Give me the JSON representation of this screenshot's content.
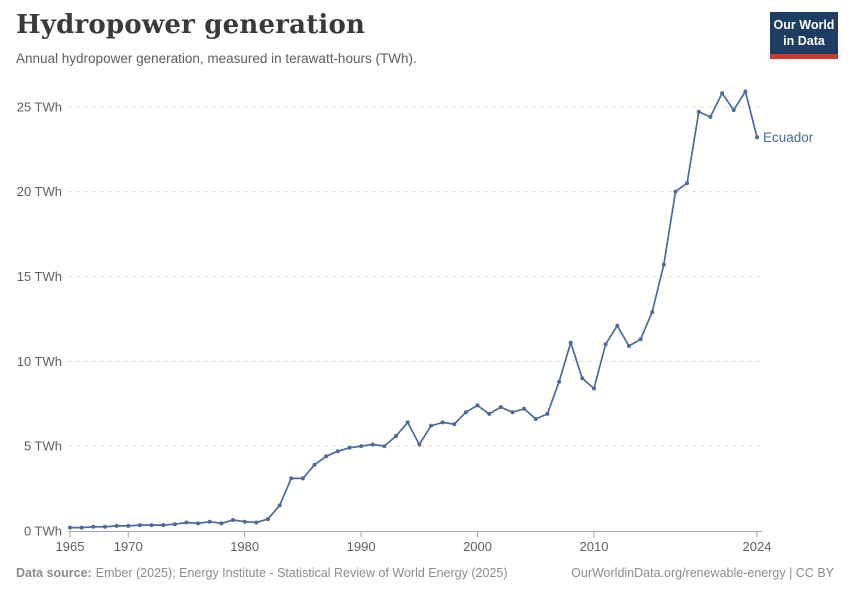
{
  "header": {
    "title": "Hydropower generation",
    "subtitle": "Annual hydropower generation, measured in terawatt-hours (TWh).",
    "logo": {
      "line1": "Our World",
      "line2": "in Data"
    }
  },
  "footer": {
    "source_label": "Data source:",
    "source_text": "Ember (2025); Energy Institute - Statistical Review of World Energy (2025)",
    "link_text": "OurWorldinData.org/renewable-energy | CC BY"
  },
  "colors": {
    "line": "#4c6a9c",
    "grid": "#dcdcdc",
    "axis": "#a3a3a3",
    "tick_label": "#5e6066",
    "logo_bg": "#1d3d63",
    "logo_red": "#cf3a2e",
    "footer_text": "#8c8c8c"
  },
  "chart_data": {
    "type": "line",
    "title": "Hydropower generation",
    "subtitle": "Annual hydropower generation, measured in terawatt-hours (TWh).",
    "unit": "TWh",
    "xlim": [
      1965,
      2024
    ],
    "ylim": [
      0,
      26.5
    ],
    "grid": "horizontal-dashed",
    "legend": "end-of-line-label",
    "x_ticks": [
      1965,
      1970,
      1980,
      1990,
      2000,
      2010,
      2024
    ],
    "x_tick_labels": [
      "1965",
      "1970",
      "1980",
      "1990",
      "2000",
      "2010",
      "2024"
    ],
    "y_ticks": [
      0,
      5,
      10,
      15,
      20,
      25
    ],
    "y_tick_labels": [
      "0 TWh",
      "5 TWh",
      "10 TWh",
      "15 TWh",
      "20 TWh",
      "25 TWh"
    ],
    "series": [
      {
        "name": "Ecuador",
        "x": [
          1965,
          1966,
          1967,
          1968,
          1969,
          1970,
          1971,
          1972,
          1973,
          1974,
          1975,
          1976,
          1977,
          1978,
          1979,
          1980,
          1981,
          1982,
          1983,
          1984,
          1985,
          1986,
          1987,
          1988,
          1989,
          1990,
          1991,
          1992,
          1993,
          1994,
          1995,
          1996,
          1997,
          1998,
          1999,
          2000,
          2001,
          2002,
          2003,
          2004,
          2005,
          2006,
          2007,
          2008,
          2009,
          2010,
          2011,
          2012,
          2013,
          2014,
          2015,
          2016,
          2017,
          2018,
          2019,
          2020,
          2021,
          2022,
          2023,
          2024
        ],
        "values": [
          0.2,
          0.2,
          0.25,
          0.25,
          0.3,
          0.3,
          0.35,
          0.35,
          0.35,
          0.4,
          0.5,
          0.45,
          0.55,
          0.45,
          0.65,
          0.55,
          0.5,
          0.7,
          1.5,
          3.1,
          3.1,
          3.9,
          4.4,
          4.7,
          4.9,
          5.0,
          5.1,
          5.0,
          5.6,
          6.4,
          5.1,
          6.2,
          6.4,
          6.3,
          7.0,
          7.4,
          6.9,
          7.3,
          7.0,
          7.2,
          6.6,
          6.9,
          8.8,
          11.1,
          9.0,
          8.4,
          11.0,
          12.1,
          10.9,
          11.3,
          12.9,
          15.7,
          20.0,
          20.5,
          24.7,
          24.4,
          25.8,
          24.8,
          25.9,
          23.2
        ]
      }
    ]
  }
}
